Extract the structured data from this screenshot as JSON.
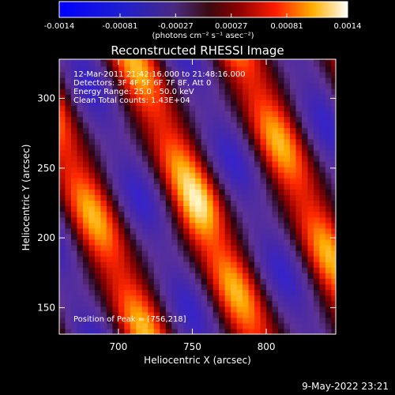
{
  "chart_data": {
    "type": "heatmap",
    "title": "Reconstructed RHESSI Image",
    "xlabel": "Heliocentric X (arcsec)",
    "ylabel": "Heliocentric Y (arcsec)",
    "xlim": [
      660,
      847
    ],
    "ylim": [
      131,
      328
    ],
    "x_ticks": [
      700,
      750,
      800
    ],
    "y_ticks": [
      150,
      200,
      250,
      300
    ],
    "colorbar": {
      "min": -0.0014,
      "max": 0.0014,
      "tick_values": [
        -0.0014,
        -0.00081,
        -0.00027,
        0.00027,
        0.00081,
        0.0014
      ],
      "tick_labels": [
        "-0.0014",
        "-0.00081",
        "-0.00027",
        "0.00027",
        "0.00081",
        "0.0014"
      ],
      "unit_label": "(photons cm⁻² s⁻¹ asec⁻²)"
    },
    "annotations": [
      "12-Mar-2011 21:42:16.000 to 21:48:16.000",
      "Detectors: 3F 4F 5F 6F 7F 8F, Att 0",
      "Energy Range: 25.0 - 50.0 keV",
      "Clean    Total counts: 1.43E+04"
    ],
    "peak_label": "Position of Peak = [756,218]",
    "peak": [
      756,
      218
    ],
    "peak_value": 0.0014,
    "date_stamp": "9-May-2022 23:21"
  }
}
